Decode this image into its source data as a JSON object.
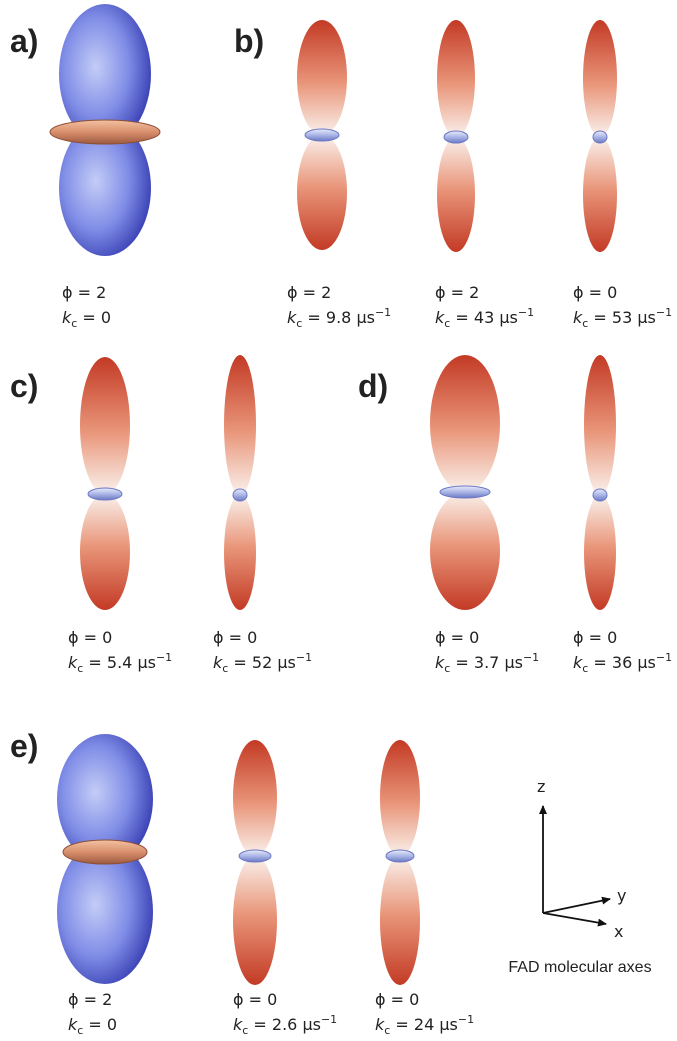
{
  "panels": [
    {
      "label": "a)",
      "items": [
        {
          "phi": "ϕ = 2",
          "kc": {
            "k": "k",
            "sub": "c",
            "text": " = 0"
          }
        }
      ]
    },
    {
      "label": "b)",
      "items": [
        {
          "phi": "ϕ = 2",
          "kc": {
            "k": "k",
            "sub": "c",
            "text": " = 9.8 μs",
            "sup": "−1"
          }
        },
        {
          "phi": "ϕ = 2",
          "kc": {
            "k": "k",
            "sub": "c",
            "text": " = 43 μs",
            "sup": "−1"
          }
        },
        {
          "phi": "ϕ = 0",
          "kc": {
            "k": "k",
            "sub": "c",
            "text": " = 53 μs",
            "sup": "−1"
          }
        }
      ]
    },
    {
      "label": "c)",
      "items": [
        {
          "phi": "ϕ = 0",
          "kc": {
            "k": "k",
            "sub": "c",
            "text": " = 5.4 μs",
            "sup": "−1"
          }
        },
        {
          "phi": "ϕ = 0",
          "kc": {
            "k": "k",
            "sub": "c",
            "text": " = 52 μs",
            "sup": "−1"
          }
        }
      ]
    },
    {
      "label": "d)",
      "items": [
        {
          "phi": "ϕ = 0",
          "kc": {
            "k": "k",
            "sub": "c",
            "text": " = 3.7 μs",
            "sup": "−1"
          }
        },
        {
          "phi": "ϕ = 0",
          "kc": {
            "k": "k",
            "sub": "c",
            "text": " = 36 μs",
            "sup": "−1"
          }
        }
      ]
    },
    {
      "label": "e)",
      "items": [
        {
          "phi": "ϕ = 2",
          "kc": {
            "k": "k",
            "sub": "c",
            "text": " = 0"
          }
        },
        {
          "phi": "ϕ = 0",
          "kc": {
            "k": "k",
            "sub": "c",
            "text": " = 2.6 μs",
            "sup": "−1"
          }
        },
        {
          "phi": "ϕ = 0",
          "kc": {
            "k": "k",
            "sub": "c",
            "text": " = 24 μs",
            "sup": "−1"
          }
        }
      ]
    }
  ],
  "axes": {
    "z": "z",
    "y": "y",
    "x": "x",
    "caption": "FAD molecular axes"
  }
}
